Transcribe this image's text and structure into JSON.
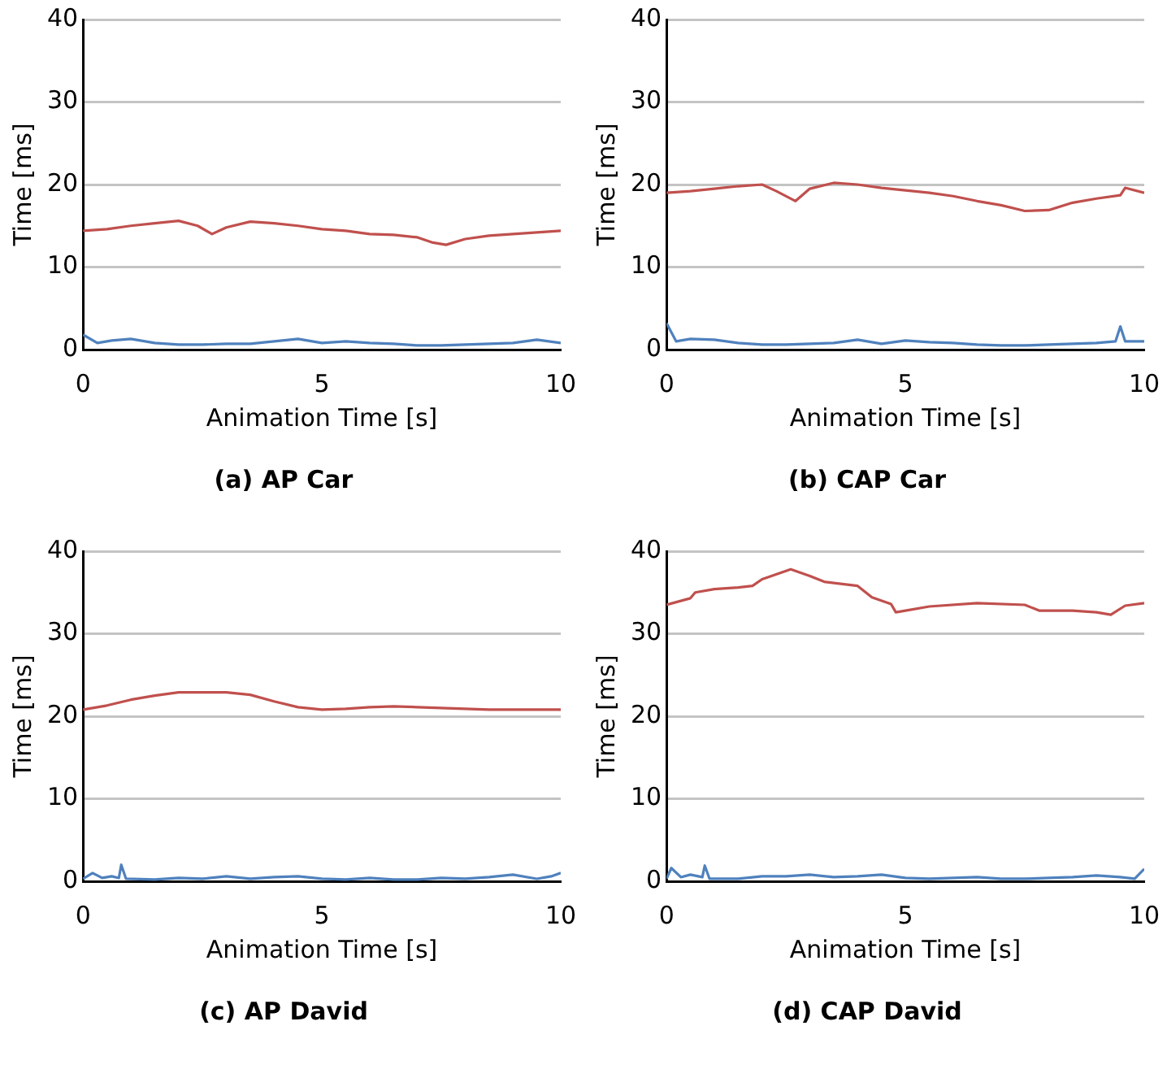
{
  "chart_data": [
    {
      "type": "line",
      "title": "(a) AP Car",
      "xlabel": "Animation Time [s]",
      "ylabel": "Time [ms]",
      "xlim": [
        0,
        10
      ],
      "xticks": [
        0,
        5,
        10
      ],
      "ylim": [
        0,
        40
      ],
      "yticks": [
        0,
        10,
        20,
        30,
        40
      ],
      "grid": "y",
      "legend": false,
      "marker": "none",
      "series": [
        {
          "color": "#c0504d",
          "x": [
            0,
            0.5,
            1,
            1.5,
            2,
            2.4,
            2.7,
            3,
            3.5,
            4,
            4.5,
            5,
            5.5,
            6,
            6.5,
            7,
            7.3,
            7.6,
            8,
            8.5,
            9,
            9.5,
            10
          ],
          "values": [
            14.4,
            14.6,
            15,
            15.3,
            15.6,
            15,
            14,
            14.8,
            15.5,
            15.3,
            15,
            14.6,
            14.4,
            14,
            13.9,
            13.6,
            13,
            12.7,
            13.4,
            13.8,
            14,
            14.2,
            14.4
          ]
        },
        {
          "color": "#4f81bd",
          "x": [
            0,
            0.3,
            0.6,
            1,
            1.5,
            2,
            2.5,
            3,
            3.5,
            4,
            4.5,
            5,
            5.5,
            6,
            6.5,
            7,
            7.5,
            8,
            8.5,
            9,
            9.5,
            10
          ],
          "values": [
            1.8,
            0.8,
            1.1,
            1.3,
            0.8,
            0.6,
            0.6,
            0.7,
            0.7,
            1,
            1.3,
            0.8,
            1,
            0.8,
            0.7,
            0.5,
            0.5,
            0.6,
            0.7,
            0.8,
            1.2,
            0.8
          ]
        }
      ]
    },
    {
      "type": "line",
      "title": "(b) CAP Car",
      "xlabel": "Animation Time [s]",
      "ylabel": "Time [ms]",
      "xlim": [
        0,
        10
      ],
      "xticks": [
        0,
        5,
        10
      ],
      "ylim": [
        0,
        40
      ],
      "yticks": [
        0,
        10,
        20,
        30,
        40
      ],
      "grid": "y",
      "legend": false,
      "marker": "none",
      "series": [
        {
          "color": "#c0504d",
          "x": [
            0,
            0.5,
            1,
            1.5,
            2,
            2.3,
            2.7,
            3,
            3.5,
            4,
            4.5,
            5,
            5.5,
            6,
            6.5,
            7,
            7.5,
            8,
            8.5,
            9,
            9.5,
            9.6,
            10
          ],
          "values": [
            19,
            19.2,
            19.5,
            19.8,
            20,
            19.2,
            18,
            19.5,
            20.2,
            20,
            19.6,
            19.3,
            19,
            18.6,
            18,
            17.5,
            16.8,
            16.9,
            17.8,
            18.3,
            18.7,
            19.6,
            19
          ]
        },
        {
          "color": "#4f81bd",
          "x": [
            0,
            0.2,
            0.5,
            1,
            1.5,
            2,
            2.5,
            3,
            3.5,
            4,
            4.5,
            5,
            5.5,
            6,
            6.5,
            7,
            7.5,
            8,
            8.5,
            9,
            9.4,
            9.5,
            9.6,
            10
          ],
          "values": [
            3.2,
            1,
            1.3,
            1.2,
            0.8,
            0.6,
            0.6,
            0.7,
            0.8,
            1.2,
            0.7,
            1.1,
            0.9,
            0.8,
            0.6,
            0.5,
            0.5,
            0.6,
            0.7,
            0.8,
            1,
            2.8,
            1,
            1
          ]
        }
      ]
    },
    {
      "type": "line",
      "title": "(c) AP David",
      "xlabel": "Animation Time [s]",
      "ylabel": "Time [ms]",
      "xlim": [
        0,
        10
      ],
      "xticks": [
        0,
        5,
        10
      ],
      "ylim": [
        0,
        40
      ],
      "yticks": [
        0,
        10,
        20,
        30,
        40
      ],
      "grid": "y",
      "legend": false,
      "marker": "none",
      "series": [
        {
          "color": "#c0504d",
          "x": [
            0,
            0.5,
            1,
            1.5,
            2,
            2.5,
            3,
            3.5,
            4,
            4.5,
            5,
            5.5,
            6,
            6.5,
            7,
            7.5,
            8,
            8.5,
            9,
            9.5,
            10
          ],
          "values": [
            20.8,
            21.3,
            22,
            22.5,
            22.9,
            22.9,
            22.9,
            22.6,
            21.8,
            21.1,
            20.8,
            20.9,
            21.1,
            21.2,
            21.1,
            21,
            20.9,
            20.8,
            20.8,
            20.8,
            20.8
          ]
        },
        {
          "color": "#4f81bd",
          "x": [
            0,
            0.2,
            0.4,
            0.6,
            0.75,
            0.8,
            0.9,
            1.5,
            2,
            2.5,
            3,
            3.5,
            4,
            4.5,
            5,
            5.5,
            6,
            6.5,
            7,
            7.5,
            8,
            8.5,
            9,
            9.5,
            9.8,
            10
          ],
          "values": [
            0.3,
            1,
            0.4,
            0.6,
            0.4,
            2,
            0.3,
            0.2,
            0.4,
            0.3,
            0.6,
            0.3,
            0.5,
            0.6,
            0.3,
            0.2,
            0.4,
            0.2,
            0.2,
            0.4,
            0.3,
            0.5,
            0.8,
            0.3,
            0.6,
            1
          ]
        }
      ]
    },
    {
      "type": "line",
      "title": "(d) CAP David",
      "xlabel": "Animation Time [s]",
      "ylabel": "Time [ms]",
      "xlim": [
        0,
        10
      ],
      "xticks": [
        0,
        5,
        10
      ],
      "ylim": [
        0,
        40
      ],
      "yticks": [
        0,
        10,
        20,
        30,
        40
      ],
      "grid": "y",
      "legend": false,
      "marker": "none",
      "series": [
        {
          "color": "#c0504d",
          "x": [
            0,
            0.5,
            0.6,
            1,
            1.5,
            1.8,
            2,
            2.6,
            3,
            3.3,
            4,
            4.3,
            4.7,
            4.8,
            5,
            5.5,
            6.5,
            7.5,
            7.8,
            8.5,
            9,
            9.3,
            9.6,
            10
          ],
          "values": [
            33.5,
            34.3,
            35,
            35.4,
            35.6,
            35.8,
            36.6,
            37.8,
            37,
            36.3,
            35.8,
            34.4,
            33.6,
            32.6,
            32.8,
            33.3,
            33.7,
            33.5,
            32.8,
            32.8,
            32.6,
            32.3,
            33.4,
            33.7
          ]
        },
        {
          "color": "#4f81bd",
          "x": [
            0,
            0.1,
            0.3,
            0.5,
            0.75,
            0.8,
            0.9,
            1.5,
            2,
            2.5,
            3,
            3.5,
            4,
            4.5,
            5,
            5.5,
            6,
            6.5,
            7,
            7.5,
            8,
            8.5,
            9,
            9.5,
            9.8,
            10
          ],
          "values": [
            0.3,
            1.6,
            0.5,
            0.8,
            0.5,
            1.9,
            0.3,
            0.3,
            0.6,
            0.6,
            0.8,
            0.5,
            0.6,
            0.8,
            0.4,
            0.3,
            0.4,
            0.5,
            0.3,
            0.3,
            0.4,
            0.5,
            0.7,
            0.5,
            0.3,
            1.5
          ]
        }
      ]
    }
  ]
}
